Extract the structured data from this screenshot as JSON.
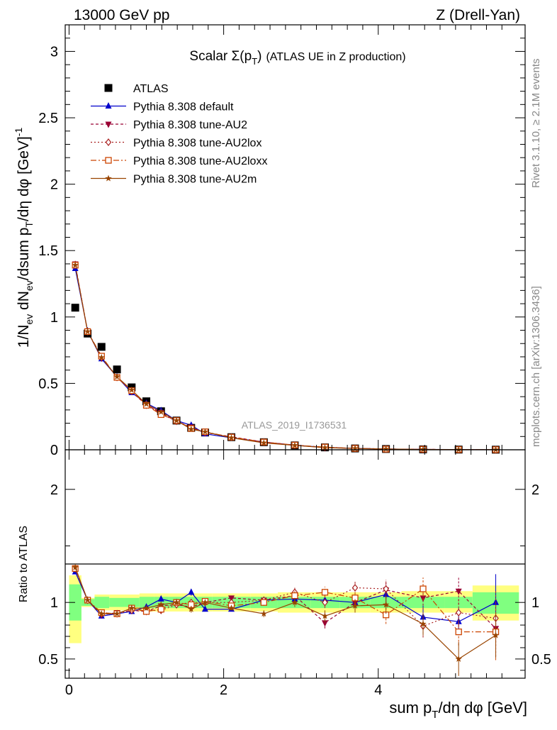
{
  "header": {
    "left": "13000 GeV pp",
    "right": "Z (Drell-Yan)"
  },
  "side_labels": {
    "rivet": "Rivet 3.1.10, ≥ 2.1M events",
    "mcplots": "mcplots.cern.ch [arXiv:1306.3436]"
  },
  "colors": {
    "data": "#000000",
    "default": "#0000cc",
    "au2": "#990033",
    "au2lox": "#aa2222",
    "au2loxx": "#cc4400",
    "au2m": "#994400",
    "band_inner": "#80ff80",
    "band_outer": "#ffff80"
  },
  "chart_data": [
    {
      "type": "scatter",
      "title": "Scalar Σ(p_T) (ATLAS UE in Z production)",
      "analysis_label": "ATLAS_2019_I1736531",
      "ylabel": "1/N_ev dN_ev/dsum p_T/dη dφ [GeV]^-1",
      "xlim": [
        -0.05,
        5.9
      ],
      "ylim": [
        0,
        3.2
      ],
      "yticks": [
        0,
        0.5,
        1,
        1.5,
        2,
        2.5,
        3
      ],
      "ytick_labels": [
        "0",
        "0.5",
        "1",
        "1.5",
        "2",
        "2.5",
        "3"
      ],
      "legend_position": "top-left",
      "x": [
        0.08,
        0.24,
        0.42,
        0.62,
        0.81,
        1.0,
        1.19,
        1.39,
        1.58,
        1.76,
        2.1,
        2.52,
        2.92,
        3.31,
        3.7,
        4.1,
        4.58,
        5.04,
        5.52
      ],
      "series": [
        {
          "name": "ATLAS",
          "key": "data",
          "marker": "square-filled",
          "dash": "",
          "values": [
            1.07,
            0.875,
            0.775,
            0.605,
            0.47,
            0.365,
            0.29,
            0.22,
            0.165,
            0.13,
            0.095,
            0.057,
            0.033,
            0.018,
            0.01,
            0.006,
            0.003,
            0.0015,
            0.0008
          ]
        },
        {
          "name": "Pythia 8.308 default",
          "key": "default",
          "marker": "triangle-up",
          "dash": "",
          "values": [
            1.365,
            0.895,
            0.685,
            0.55,
            0.43,
            0.35,
            0.295,
            0.22,
            0.185,
            0.12,
            0.09,
            0.058,
            0.034,
            0.018,
            0.01,
            0.006,
            0.003,
            0.0015,
            0.0008
          ]
        },
        {
          "name": "Pythia 8.308 tune-AU2",
          "key": "au2",
          "marker": "triangle-down",
          "dash": "4,3",
          "values": [
            1.4,
            0.89,
            0.69,
            0.55,
            0.44,
            0.335,
            0.28,
            0.215,
            0.17,
            0.13,
            0.098,
            0.058,
            0.035,
            0.016,
            0.011,
            0.006,
            0.003,
            0.0015,
            0.0008
          ]
        },
        {
          "name": "Pythia 8.308 tune-AU2lox",
          "key": "au2lox",
          "marker": "diamond-open",
          "dash": "2,3",
          "values": [
            1.395,
            0.89,
            0.695,
            0.545,
            0.44,
            0.34,
            0.27,
            0.215,
            0.165,
            0.13,
            0.095,
            0.058,
            0.035,
            0.018,
            0.011,
            0.006,
            0.003,
            0.0015,
            0.0008
          ]
        },
        {
          "name": "Pythia 8.308 tune-AU2loxx",
          "key": "au2loxx",
          "marker": "square-open",
          "dash": "8,3,2,3",
          "values": [
            1.39,
            0.89,
            0.705,
            0.545,
            0.445,
            0.335,
            0.265,
            0.22,
            0.16,
            0.135,
            0.095,
            0.058,
            0.035,
            0.02,
            0.0105,
            0.005,
            0.0035,
            0.0012,
            0.0006
          ]
        },
        {
          "name": "Pythia 8.308 tune-AU2m",
          "key": "au2m",
          "marker": "star",
          "dash": "",
          "values": [
            1.39,
            0.89,
            0.695,
            0.55,
            0.45,
            0.345,
            0.285,
            0.22,
            0.155,
            0.135,
            0.09,
            0.052,
            0.033,
            0.016,
            0.0097,
            0.006,
            0.0024,
            0.0008,
            0.0006
          ]
        }
      ]
    },
    {
      "type": "scatter",
      "title": "",
      "ylabel": "Ratio to ATLAS",
      "xlabel": "sum p_T/dη dφ [GeV]",
      "xlim": [
        -0.05,
        5.9
      ],
      "ylim": [
        0.33,
        2.35
      ],
      "xticks": [
        0,
        2,
        4
      ],
      "xtick_labels": [
        "0",
        "2",
        "4"
      ],
      "yticks": [
        0.5,
        1,
        2
      ],
      "ytick_labels": [
        "0.5",
        "1",
        "2"
      ],
      "reference_line": 1,
      "band_edges": [
        0,
        0.16,
        0.33,
        0.52,
        0.72,
        0.91,
        1.1,
        1.29,
        1.49,
        1.67,
        1.85,
        2.35,
        2.7,
        3.13,
        3.5,
        3.9,
        4.3,
        4.86,
        5.22,
        5.82
      ],
      "band_inner": [
        [
          0.84,
          1.16
        ],
        [
          0.97,
          1.03
        ],
        [
          0.95,
          1.05
        ],
        [
          0.96,
          1.04
        ],
        [
          0.96,
          1.04
        ],
        [
          0.95,
          1.05
        ],
        [
          0.95,
          1.05
        ],
        [
          0.95,
          1.05
        ],
        [
          0.95,
          1.05
        ],
        [
          0.95,
          1.05
        ],
        [
          0.95,
          1.05
        ],
        [
          0.95,
          1.05
        ],
        [
          0.95,
          1.05
        ],
        [
          0.95,
          1.05
        ],
        [
          0.95,
          1.05
        ],
        [
          0.95,
          1.05
        ],
        [
          0.95,
          1.05
        ],
        [
          0.95,
          1.05
        ],
        [
          0.9,
          1.09
        ]
      ],
      "band_outer": [
        [
          0.64,
          1.24
        ],
        [
          0.96,
          1.04
        ],
        [
          0.93,
          1.07
        ],
        [
          0.93,
          1.07
        ],
        [
          0.93,
          1.07
        ],
        [
          0.92,
          1.08
        ],
        [
          0.92,
          1.08
        ],
        [
          0.92,
          1.08
        ],
        [
          0.92,
          1.08
        ],
        [
          0.92,
          1.08
        ],
        [
          0.92,
          1.08
        ],
        [
          0.92,
          1.08
        ],
        [
          0.91,
          1.09
        ],
        [
          0.91,
          1.09
        ],
        [
          0.91,
          1.09
        ],
        [
          0.91,
          1.09
        ],
        [
          0.91,
          1.1
        ],
        [
          0.91,
          1.1
        ],
        [
          0.84,
          1.15
        ]
      ],
      "x": [
        0.08,
        0.24,
        0.42,
        0.62,
        0.81,
        1.0,
        1.19,
        1.39,
        1.58,
        1.76,
        2.1,
        2.52,
        2.92,
        3.31,
        3.7,
        4.1,
        4.58,
        5.04,
        5.52
      ],
      "series": [
        {
          "name": "Pythia 8.308 default",
          "key": "default",
          "marker": "triangle-up",
          "dash": "",
          "values": [
            1.27,
            1.02,
            0.88,
            0.9,
            0.92,
            0.96,
            1.03,
            1.0,
            1.09,
            0.94,
            0.94,
            1.02,
            1.03,
            1.02,
            1.0,
            1.07,
            0.87,
            0.83,
            1.0
          ],
          "errors": [
            0.02,
            0.01,
            0.01,
            0.01,
            0.01,
            0.02,
            0.02,
            0.02,
            0.03,
            0.02,
            0.02,
            0.03,
            0.04,
            0.05,
            0.06,
            0.08,
            0.1,
            0.12,
            0.25
          ]
        },
        {
          "name": "Pythia 8.308 tune-AU2",
          "key": "au2",
          "marker": "triangle-down",
          "dash": "4,3",
          "values": [
            1.3,
            1.02,
            0.89,
            0.91,
            0.93,
            0.92,
            0.97,
            0.98,
            0.96,
            1.0,
            1.04,
            1.02,
            1.06,
            0.82,
            1.0,
            1.11,
            1.04,
            1.1,
            0.77
          ],
          "errors": [
            0.02,
            0.01,
            0.01,
            0.01,
            0.01,
            0.02,
            0.02,
            0.02,
            0.03,
            0.02,
            0.02,
            0.03,
            0.04,
            0.05,
            0.06,
            0.08,
            0.1,
            0.12,
            0.25
          ]
        },
        {
          "name": "Pythia 8.308 tune-AU2lox",
          "key": "au2lox",
          "marker": "diamond-open",
          "dash": "2,3",
          "values": [
            1.3,
            1.02,
            0.9,
            0.9,
            0.93,
            0.93,
            0.93,
            0.98,
            1.0,
            1.0,
            1.0,
            1.02,
            1.09,
            1.0,
            1.13,
            1.12,
            0.79,
            0.91,
            0.86
          ],
          "errors": [
            0.02,
            0.01,
            0.01,
            0.01,
            0.01,
            0.02,
            0.02,
            0.02,
            0.03,
            0.02,
            0.02,
            0.03,
            0.04,
            0.05,
            0.06,
            0.08,
            0.1,
            0.12,
            0.25
          ]
        },
        {
          "name": "Pythia 8.308 tune-AU2loxx",
          "key": "au2loxx",
          "marker": "square-open",
          "dash": "8,3,2,3",
          "values": [
            1.3,
            1.02,
            0.91,
            0.9,
            0.95,
            0.92,
            0.94,
            1.0,
            0.98,
            1.01,
            0.97,
            1.0,
            1.06,
            1.09,
            1.04,
            0.89,
            1.12,
            0.74,
            0.74
          ],
          "errors": [
            0.02,
            0.01,
            0.01,
            0.01,
            0.01,
            0.02,
            0.02,
            0.02,
            0.03,
            0.02,
            0.02,
            0.03,
            0.04,
            0.05,
            0.06,
            0.08,
            0.1,
            0.12,
            0.25
          ]
        },
        {
          "name": "Pythia 8.308 tune-AU2m",
          "key": "au2m",
          "marker": "star",
          "dash": "",
          "values": [
            1.31,
            1.02,
            0.9,
            0.9,
            0.95,
            0.95,
            0.98,
            1.0,
            0.94,
            1.0,
            0.95,
            0.9,
            1.0,
            0.88,
            0.97,
            0.98,
            0.81,
            0.5,
            0.71
          ],
          "errors": [
            0.02,
            0.01,
            0.01,
            0.01,
            0.01,
            0.02,
            0.02,
            0.02,
            0.03,
            0.02,
            0.02,
            0.03,
            0.04,
            0.05,
            0.06,
            0.08,
            0.1,
            0.15,
            0.2
          ]
        }
      ]
    }
  ]
}
